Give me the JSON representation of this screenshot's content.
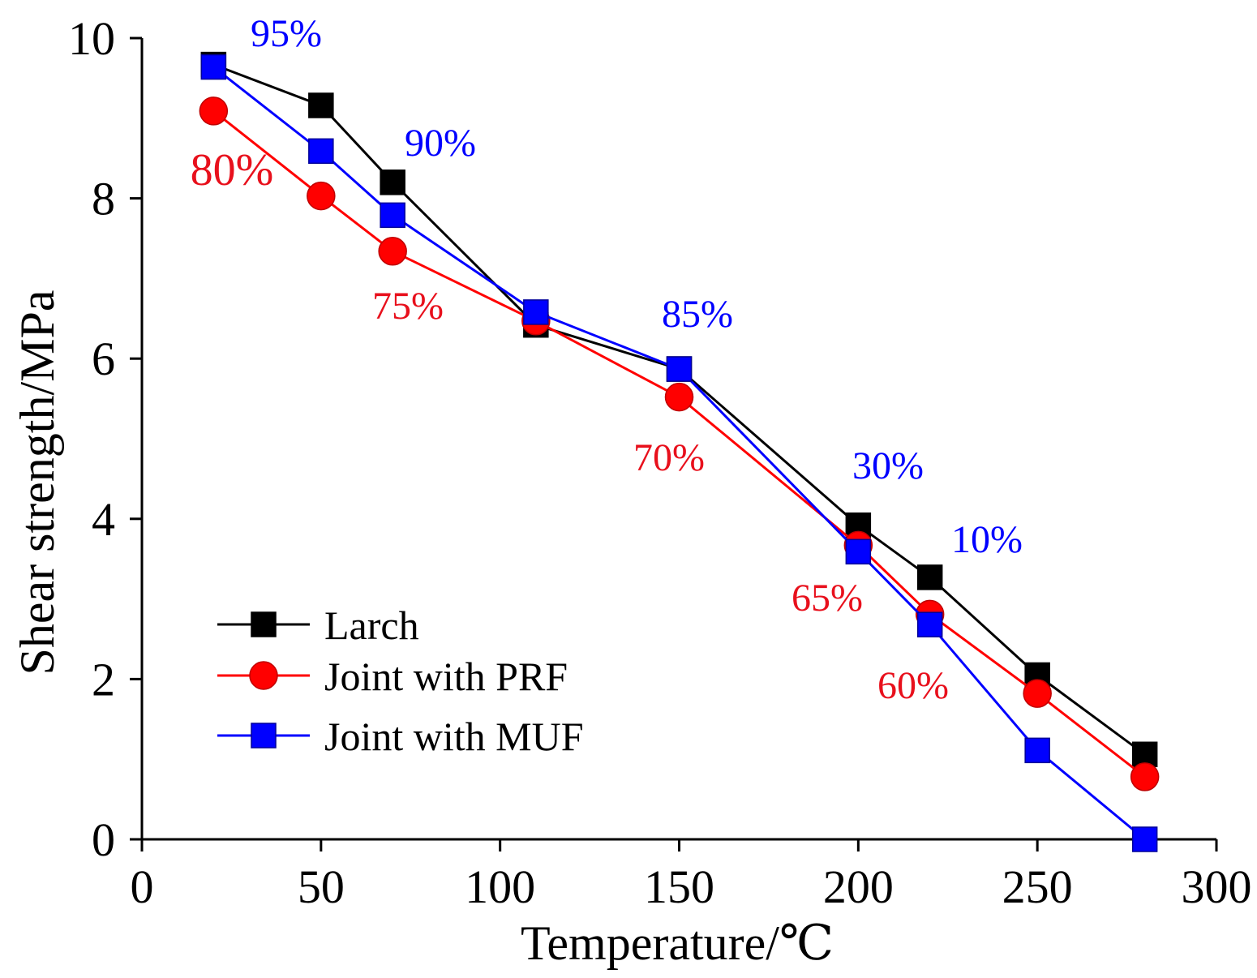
{
  "chart_data": {
    "type": "line",
    "title": "",
    "xlabel": "Temperature/℃",
    "ylabel": "Shear strength/MPa",
    "xlim": [
      0,
      300
    ],
    "ylim": [
      0,
      10
    ],
    "xticks": [
      "0",
      "50",
      "100",
      "150",
      "200",
      "250",
      "300"
    ],
    "yticks": [
      "0",
      "2",
      "4",
      "6",
      "8",
      "10"
    ],
    "grid": false,
    "legend_position": "lower-left",
    "x": [
      20,
      50,
      70,
      110,
      150,
      200,
      220,
      250,
      280
    ],
    "series": [
      {
        "name": "Larch",
        "color": "#000000",
        "marker": "square",
        "values": [
          9.67,
          9.16,
          8.2,
          6.42,
          5.87,
          3.92,
          3.27,
          2.05,
          1.06
        ]
      },
      {
        "name": "Joint with PRF",
        "color": "#ff0000",
        "marker": "circle",
        "values": [
          9.09,
          8.03,
          7.34,
          6.47,
          5.52,
          3.67,
          2.81,
          1.82,
          0.78
        ]
      },
      {
        "name": "Joint with MUF",
        "color": "#0000ff",
        "marker": "square",
        "values": [
          9.64,
          8.59,
          7.79,
          6.58,
          5.87,
          3.59,
          2.68,
          1.11,
          0.0
        ]
      }
    ],
    "annotations": [
      {
        "text": "95%",
        "color": "#0000ff"
      },
      {
        "text": "90%",
        "color": "#0000ff"
      },
      {
        "text": "80%",
        "color": "#e8101c"
      },
      {
        "text": "75%",
        "color": "#e8101c"
      },
      {
        "text": "85%",
        "color": "#0000ff"
      },
      {
        "text": "70%",
        "color": "#e8101c"
      },
      {
        "text": "30%",
        "color": "#0000ff"
      },
      {
        "text": "10%",
        "color": "#0000ff"
      },
      {
        "text": "65%",
        "color": "#e8101c"
      },
      {
        "text": "60%",
        "color": "#e8101c"
      }
    ]
  }
}
